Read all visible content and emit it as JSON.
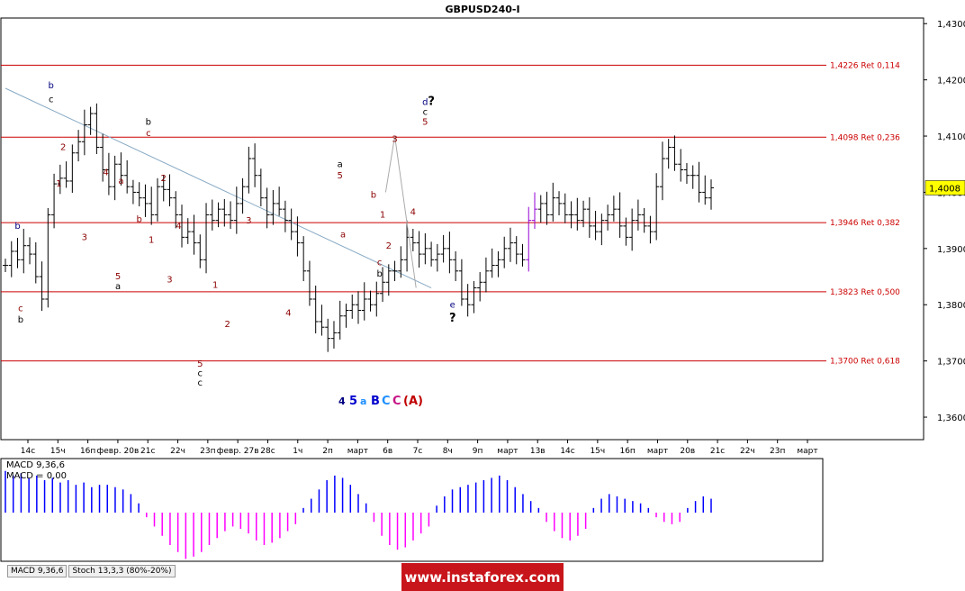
{
  "chart_data": {
    "type": "candlestick",
    "title": "GBPUSD240-I",
    "ylim": [
      1.356,
      1.431
    ],
    "yticks": [
      "1,4300",
      "1,4200",
      "1,4100",
      "1,4000",
      "1,3900",
      "1,3800",
      "1,3700",
      "1,3600"
    ],
    "ytick_values": [
      1.43,
      1.42,
      1.41,
      1.4,
      1.39,
      1.38,
      1.37,
      1.36
    ],
    "current_price": {
      "label": "1,4008",
      "value": 1.4008
    },
    "xticks": [
      "14с",
      "15ч",
      "16п",
      "февр. 20в",
      "21с",
      "22ч",
      "23п",
      "февр. 27в",
      "28с",
      "1ч",
      "2п",
      "март",
      "6в",
      "7с",
      "8ч",
      "9п",
      "март",
      "13в",
      "14с",
      "15ч",
      "16п",
      "март",
      "20в",
      "21с",
      "22ч",
      "23п",
      "март"
    ],
    "fib_levels": [
      {
        "label": "1,4226 Ret 0,114",
        "value": 1.4226
      },
      {
        "label": "1,4098 Ret 0,236",
        "value": 1.4098
      },
      {
        "label": "1,3946 Ret 0,382",
        "value": 1.3946
      },
      {
        "label": "1,3823 Ret 0,500",
        "value": 1.3823
      },
      {
        "label": "1,3700 Ret 0,618",
        "value": 1.37
      }
    ],
    "trendline": {
      "from": [
        0,
        1.4185
      ],
      "to": [
        70,
        1.383
      ]
    },
    "projection": [
      [
        62.5,
        1.4
      ],
      [
        64.0,
        1.41
      ],
      [
        67.5,
        1.383
      ]
    ],
    "candles_close": [
      1.387,
      1.3895,
      1.388,
      1.3905,
      1.389,
      1.385,
      1.381,
      1.396,
      1.4015,
      1.4025,
      1.402,
      1.407,
      1.409,
      1.412,
      1.414,
      1.408,
      1.404,
      1.401,
      1.405,
      1.403,
      1.401,
      1.4,
      1.399,
      1.398,
      1.396,
      1.401,
      1.4005,
      1.399,
      1.396,
      1.392,
      1.393,
      1.391,
      1.388,
      1.396,
      1.395,
      1.397,
      1.396,
      1.395,
      1.398,
      1.401,
      1.406,
      1.403,
      1.399,
      1.396,
      1.398,
      1.397,
      1.395,
      1.393,
      1.391,
      1.386,
      1.381,
      1.377,
      1.376,
      1.374,
      1.375,
      1.378,
      1.379,
      1.38,
      1.379,
      1.381,
      1.38,
      1.382,
      1.384,
      1.386,
      1.386,
      1.388,
      1.392,
      1.391,
      1.389,
      1.39,
      1.388,
      1.389,
      1.39,
      1.388,
      1.386,
      1.381,
      1.38,
      1.383,
      1.384,
      1.386,
      1.387,
      1.388,
      1.39,
      1.391,
      1.389,
      1.388,
      1.395,
      1.397,
      1.398,
      1.396,
      1.399,
      1.398,
      1.396,
      1.396,
      1.395,
      1.397,
      1.394,
      1.393,
      1.395,
      1.396,
      1.397,
      1.394,
      1.392,
      1.395,
      1.396,
      1.394,
      1.393,
      1.401,
      1.406,
      1.408,
      1.405,
      1.404,
      1.403,
      1.403,
      1.4,
      1.399,
      1.4008
    ],
    "wave_labels": [
      {
        "text": "b",
        "x": 2.0,
        "y": 1.3935,
        "color": "#000080"
      },
      {
        "text": "c",
        "x": 2.5,
        "y": 1.3788,
        "color": "#8b0000"
      },
      {
        "text": "b",
        "x": 2.5,
        "y": 1.3768,
        "color": "#000000"
      },
      {
        "text": "b",
        "x": 7.5,
        "y": 1.4185,
        "color": "#000080"
      },
      {
        "text": "c",
        "x": 7.5,
        "y": 1.416,
        "color": "#000000"
      },
      {
        "text": "2",
        "x": 9.5,
        "y": 1.4075,
        "color": "#8b0000"
      },
      {
        "text": "1",
        "x": 8.8,
        "y": 1.401,
        "color": "#8b0000"
      },
      {
        "text": "3",
        "x": 13.0,
        "y": 1.3915,
        "color": "#8b0000"
      },
      {
        "text": "4",
        "x": 16.5,
        "y": 1.403,
        "color": "#8b0000"
      },
      {
        "text": "a",
        "x": 19.0,
        "y": 1.4015,
        "color": "#8b0000"
      },
      {
        "text": "5",
        "x": 18.5,
        "y": 1.3845,
        "color": "#8b0000"
      },
      {
        "text": "a",
        "x": 18.5,
        "y": 1.3828,
        "color": "#000000"
      },
      {
        "text": "b",
        "x": 22.0,
        "y": 1.3947,
        "color": "#8b0000"
      },
      {
        "text": "b",
        "x": 23.5,
        "y": 1.412,
        "color": "#000000"
      },
      {
        "text": "c",
        "x": 23.5,
        "y": 1.41,
        "color": "#8b0000"
      },
      {
        "text": "1",
        "x": 24.0,
        "y": 1.391,
        "color": "#8b0000"
      },
      {
        "text": "2",
        "x": 26.0,
        "y": 1.402,
        "color": "#8b0000"
      },
      {
        "text": "4",
        "x": 28.5,
        "y": 1.3935,
        "color": "#8b0000"
      },
      {
        "text": "3",
        "x": 27.0,
        "y": 1.384,
        "color": "#8b0000"
      },
      {
        "text": "1",
        "x": 34.5,
        "y": 1.383,
        "color": "#8b0000"
      },
      {
        "text": "2",
        "x": 36.5,
        "y": 1.376,
        "color": "#8b0000"
      },
      {
        "text": "3",
        "x": 40.0,
        "y": 1.3945,
        "color": "#8b0000"
      },
      {
        "text": "5",
        "x": 32.0,
        "y": 1.369,
        "color": "#8b0000"
      },
      {
        "text": "c",
        "x": 32.0,
        "y": 1.3673,
        "color": "#000000"
      },
      {
        "text": "c",
        "x": 32.0,
        "y": 1.3656,
        "color": "#000000"
      },
      {
        "text": "4",
        "x": 46.5,
        "y": 1.378,
        "color": "#8b0000"
      },
      {
        "text": "a",
        "x": 55.0,
        "y": 1.4045,
        "color": "#000000"
      },
      {
        "text": "5",
        "x": 55.0,
        "y": 1.4025,
        "color": "#8b0000"
      },
      {
        "text": "a",
        "x": 55.5,
        "y": 1.392,
        "color": "#8b0000"
      },
      {
        "text": "b",
        "x": 60.5,
        "y": 1.399,
        "color": "#8b0000"
      },
      {
        "text": "1",
        "x": 62.0,
        "y": 1.3955,
        "color": "#8b0000"
      },
      {
        "text": "2",
        "x": 63.0,
        "y": 1.39,
        "color": "#8b0000"
      },
      {
        "text": "c",
        "x": 61.5,
        "y": 1.387,
        "color": "#8b0000"
      },
      {
        "text": "b",
        "x": 61.5,
        "y": 1.385,
        "color": "#000000"
      },
      {
        "text": "3",
        "x": 64.0,
        "y": 1.409,
        "color": "#8b0000"
      },
      {
        "text": "4",
        "x": 67.0,
        "y": 1.396,
        "color": "#8b0000"
      },
      {
        "text": "d",
        "x": 69.0,
        "y": 1.4155,
        "color": "#000080"
      },
      {
        "text": "?",
        "x": 70.0,
        "y": 1.4155,
        "color": "#000000"
      },
      {
        "text": "c",
        "x": 69.0,
        "y": 1.4138,
        "color": "#000000"
      },
      {
        "text": "5",
        "x": 69.0,
        "y": 1.412,
        "color": "#8b0000"
      },
      {
        "text": "e",
        "x": 73.5,
        "y": 1.3795,
        "color": "#000080"
      },
      {
        "text": "?",
        "x": 73.5,
        "y": 1.377,
        "color": "#000000"
      }
    ],
    "wave_degree_legend": [
      {
        "text": "4",
        "color": "#000080"
      },
      {
        "text": "5",
        "color": "#0000cd"
      },
      {
        "text": "a",
        "color": "#1e90ff"
      },
      {
        "text": "B",
        "color": "#0000cd"
      },
      {
        "text": "C",
        "color": "#1e90ff"
      },
      {
        "text": "C",
        "color": "#c71585"
      },
      {
        "text": "(A)",
        "color": "#c00000"
      }
    ],
    "macd": {
      "labels": [
        "MACD 9,36,6",
        "MACD = 0,00"
      ],
      "values": [
        0.9,
        0.8,
        0.85,
        0.75,
        0.8,
        0.7,
        0.75,
        0.65,
        0.7,
        0.6,
        0.65,
        0.55,
        0.6,
        0.6,
        0.55,
        0.5,
        0.4,
        0.2,
        -0.1,
        -0.3,
        -0.5,
        -0.7,
        -0.85,
        -1.0,
        -0.95,
        -0.85,
        -0.7,
        -0.55,
        -0.4,
        -0.3,
        -0.35,
        -0.45,
        -0.6,
        -0.7,
        -0.65,
        -0.55,
        -0.4,
        -0.25,
        0.1,
        0.3,
        0.5,
        0.7,
        0.8,
        0.75,
        0.6,
        0.4,
        0.2,
        -0.2,
        -0.5,
        -0.7,
        -0.8,
        -0.75,
        -0.6,
        -0.45,
        -0.3,
        0.15,
        0.35,
        0.5,
        0.55,
        0.6,
        0.65,
        0.7,
        0.75,
        0.8,
        0.7,
        0.55,
        0.4,
        0.25,
        0.1,
        -0.2,
        -0.4,
        -0.55,
        -0.6,
        -0.5,
        -0.35,
        0.1,
        0.3,
        0.4,
        0.35,
        0.3,
        0.25,
        0.2,
        0.1,
        -0.1,
        -0.2,
        -0.25,
        -0.2,
        0.1,
        0.25,
        0.35,
        0.3
      ],
      "ylim": [
        -1.05,
        1.05
      ]
    },
    "grid": false
  },
  "tabs": [
    "MACD 9,36,6",
    "Stoch 13,3,3 (80%-20%)"
  ],
  "banner": "www.instaforex.com"
}
